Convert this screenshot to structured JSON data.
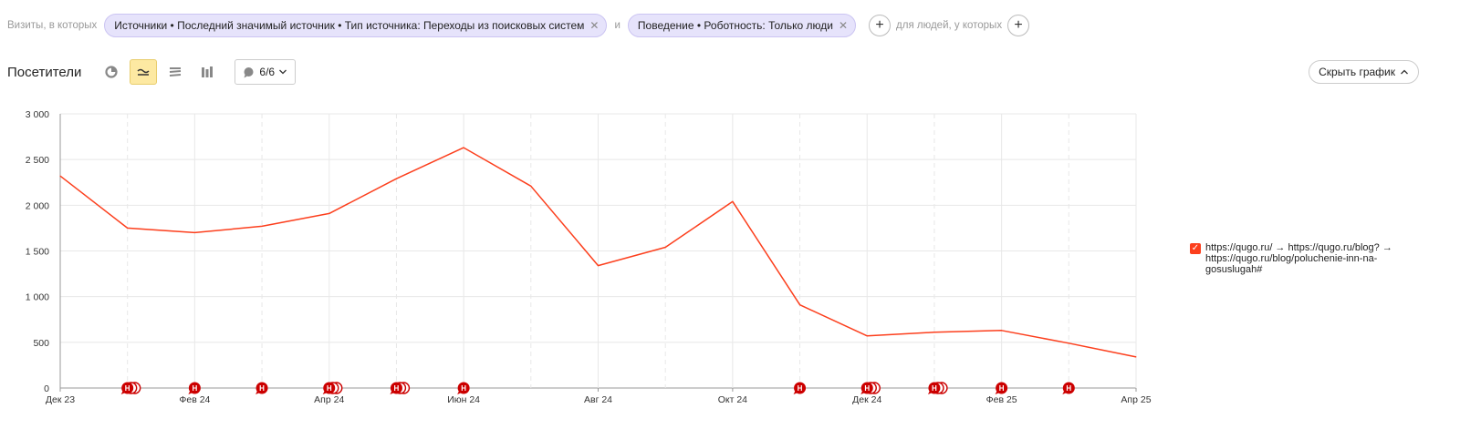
{
  "filters": {
    "prefix": "Визиты, в которых",
    "segment1": "Источники • Последний значимый источник • Тип источника: Переходы из поисковых систем",
    "and": "и",
    "segment2": "Поведение • Роботность: Только люди",
    "people_label": "для людей, у которых"
  },
  "header": {
    "title": "Посетители",
    "notes_count": "6/6",
    "hide_chart": "Скрыть график"
  },
  "legend": {
    "label": "https://qugo.ru/ → https://qugo.ru/blog? → https://qugo.ru/blog/poluchenie-inn-na-gosuslugah#",
    "checked": true,
    "color": "#fc3f1d"
  },
  "colors": {
    "line": "#fc3f1d",
    "marker": "#cc0000",
    "grid": "#e8e8e8",
    "active_view": "#fde9a2"
  },
  "icons": [
    "pie-chart-icon",
    "line-chart-icon",
    "area-chart-icon",
    "bar-chart-icon",
    "comment-icon",
    "chevron-down-icon",
    "plus-icon",
    "close-icon",
    "chevron-up-icon"
  ],
  "chart_data": {
    "type": "line",
    "title": "",
    "xlabel": "",
    "ylabel": "",
    "ylim": [
      0,
      3000
    ],
    "y_ticks": [
      0,
      500,
      1000,
      1500,
      2000,
      2500,
      3000
    ],
    "y_tick_labels": [
      "0",
      "500",
      "1 000",
      "1 500",
      "2 000",
      "2 500",
      "3 000"
    ],
    "x_tick_labels": [
      "Дек 23",
      "Фев 24",
      "Апр 24",
      "Июн 24",
      "Авг 24",
      "Окт 24",
      "Дек 24",
      "Фев 25",
      "Апр 25"
    ],
    "categories": [
      "Дек 23",
      "Янв 24",
      "Фев 24",
      "Мар 24",
      "Апр 24",
      "Май 24",
      "Июн 24",
      "Июл 24",
      "Авг 24",
      "Сен 24",
      "Окт 24",
      "Ноя 24",
      "Дек 24",
      "Янв 25",
      "Фев 25",
      "Мар 25",
      "Апр 25"
    ],
    "series": [
      {
        "values": [
          2320,
          1750,
          1700,
          1770,
          1910,
          2290,
          2630,
          2210,
          1340,
          1540,
          2040,
          910,
          570,
          610,
          630,
          490,
          340
        ]
      }
    ],
    "annotations": [
      {
        "month": "Янв 24",
        "count": 3
      },
      {
        "month": "Фев 24",
        "count": 1
      },
      {
        "month": "Мар 24",
        "count": 1
      },
      {
        "month": "Апр 24",
        "count": 3
      },
      {
        "month": "Май 24",
        "count": 3
      },
      {
        "month": "Июн 24",
        "count": 1
      },
      {
        "month": "Ноя 24",
        "count": 1
      },
      {
        "month": "Дек 24",
        "count": 3
      },
      {
        "month": "Янв 25",
        "count": 3
      },
      {
        "month": "Фев 25",
        "count": 1
      },
      {
        "month": "Мар 25",
        "count": 1
      }
    ],
    "annotation_letter": "Н",
    "grid": true,
    "legend_position": "right"
  }
}
